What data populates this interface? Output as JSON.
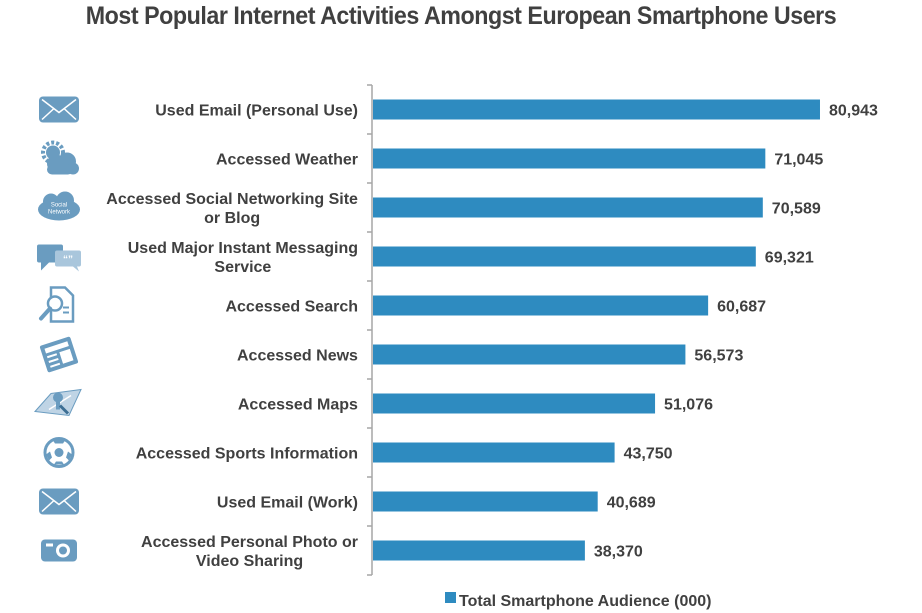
{
  "chart_data": {
    "type": "bar",
    "orientation": "horizontal",
    "title": "Most Popular Internet Activities Amongst European Smartphone Users",
    "xlabel": "",
    "ylabel": "",
    "xlim": [
      0,
      90000
    ],
    "grid": false,
    "legend_position": "bottom",
    "categories": [
      {
        "label": [
          "Used Email (Personal Use)"
        ],
        "icon": "envelope-icon"
      },
      {
        "label": [
          "Accessed Weather"
        ],
        "icon": "weather-icon"
      },
      {
        "label": [
          "Accessed Social Networking Site",
          "or Blog"
        ],
        "icon": "social-network-cloud-icon"
      },
      {
        "label": [
          "Used Major Instant Messaging",
          "Service"
        ],
        "icon": "chat-bubbles-icon"
      },
      {
        "label": [
          "Accessed Search"
        ],
        "icon": "search-document-icon"
      },
      {
        "label": [
          "Accessed News"
        ],
        "icon": "newspaper-icon"
      },
      {
        "label": [
          "Accessed Maps"
        ],
        "icon": "map-icon"
      },
      {
        "label": [
          "Accessed Sports Information"
        ],
        "icon": "soccer-ball-icon"
      },
      {
        "label": [
          "Used Email (Work)"
        ],
        "icon": "envelope-icon"
      },
      {
        "label": [
          "Accessed Personal Photo or",
          "Video Sharing"
        ],
        "icon": "camera-icon"
      }
    ],
    "series": [
      {
        "name": "Total Smartphone Audience (000)",
        "color": "#2E8BC0",
        "values": [
          80943,
          71045,
          70589,
          69321,
          60687,
          56573,
          51076,
          43750,
          40689,
          38370
        ],
        "value_labels": [
          "80,943",
          "71,045",
          "70,589",
          "69,321",
          "60,687",
          "56,573",
          "51,076",
          "43,750",
          "40,689",
          "38,370"
        ]
      }
    ],
    "colors": {
      "bar": "#2E8BC0",
      "icon": "#6A9CC0",
      "text": "#404040",
      "axis": "#A6A6A6"
    }
  }
}
